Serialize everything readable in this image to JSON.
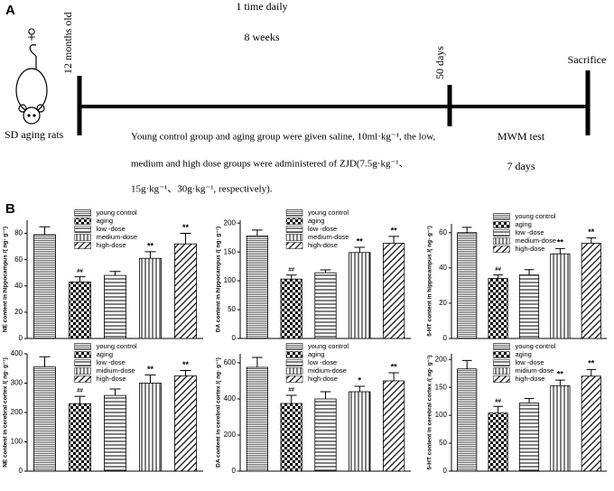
{
  "panel_a": {
    "label": "A",
    "symbol": "♀",
    "start": "12 months old",
    "frequency": "1 time daily",
    "duration": "8 weeks",
    "mid": "50 days",
    "end": "Sacrifice",
    "subject": "SD aging rats",
    "note": [
      "Young control group and aging group were given saline, 10ml·kg⁻¹, the low,",
      "medium and high dose groups were administered of ZJD(7.5g·kg⁻¹、",
      "15g·kg⁻¹、30g·kg⁻¹, respectively)."
    ],
    "test": "MWM test",
    "test_duration": "7 days"
  },
  "panel_b_label": "B",
  "chart_data": [
    {
      "type": "bar",
      "ylabel": "NE content in hippocampus /( ng· g⁻¹)",
      "categories": [
        "young control",
        "aging",
        "low -dose",
        "medium-dose",
        "high-dose"
      ],
      "values": [
        79,
        43,
        48,
        61,
        72
      ],
      "errors": [
        6,
        4,
        3,
        5,
        8
      ],
      "annotations": [
        null,
        "##",
        null,
        "**",
        "**"
      ],
      "ylim": [
        0,
        90
      ],
      "yticks": [
        0,
        20,
        40,
        60,
        80
      ]
    },
    {
      "type": "bar",
      "ylabel": "DA content in hippocampus /( ng· g⁻¹)",
      "categories": [
        "young control",
        "aging",
        "low -dose",
        "medium-dose",
        "high-dose"
      ],
      "values": [
        178,
        103,
        114,
        149,
        165
      ],
      "errors": [
        10,
        7,
        5,
        9,
        12
      ],
      "annotations": [
        null,
        "##",
        null,
        "**",
        "**"
      ],
      "ylim": [
        0,
        205
      ],
      "yticks": [
        0,
        50,
        100,
        150,
        200
      ]
    },
    {
      "type": "bar",
      "ylabel": "5-HT content in hippocampus /( ng· g⁻¹)",
      "categories": [
        "young control",
        "aging",
        "low -dose",
        "medium-dose",
        "high-dose"
      ],
      "values": [
        60,
        34,
        36,
        48,
        54
      ],
      "errors": [
        3,
        2,
        3,
        3,
        3
      ],
      "annotations": [
        null,
        "##",
        null,
        "**",
        "**"
      ],
      "ylim": [
        0,
        65
      ],
      "yticks": [
        0,
        20,
        40,
        60
      ]
    },
    {
      "type": "bar",
      "ylabel": "NE content in cerebral cortex /( ng· g⁻¹)",
      "categories": [
        "young control",
        "aging",
        "low -dose",
        "midium-dose",
        "high-dose"
      ],
      "values": [
        355,
        230,
        258,
        300,
        325
      ],
      "errors": [
        35,
        25,
        22,
        28,
        18
      ],
      "annotations": [
        null,
        "##",
        null,
        "**",
        "**"
      ],
      "ylim": [
        0,
        400
      ],
      "yticks": [
        0,
        100,
        200,
        300,
        400
      ]
    },
    {
      "type": "bar",
      "ylabel": "DA content in cerebral cortex /( ng· g⁻¹)",
      "categories": [
        "young control",
        "aging",
        "low -dose",
        "midium-dose",
        "high-dose"
      ],
      "values": [
        575,
        375,
        400,
        440,
        500
      ],
      "errors": [
        55,
        45,
        40,
        30,
        45
      ],
      "annotations": [
        null,
        "##",
        null,
        "*",
        "**"
      ],
      "ylim": [
        0,
        650
      ],
      "yticks": [
        0,
        200,
        400,
        600
      ]
    },
    {
      "type": "bar",
      "ylabel": "5-HT content in cerebral cortex /( ng· g⁻¹)",
      "categories": [
        "young control",
        "aging",
        "low -dose",
        "midium-dose",
        "high-dose"
      ],
      "values": [
        183,
        104,
        122,
        153,
        170
      ],
      "errors": [
        15,
        12,
        8,
        10,
        12
      ],
      "annotations": [
        null,
        "##",
        null,
        "**",
        "**"
      ],
      "ylim": [
        0,
        210
      ],
      "yticks": [
        0,
        50,
        100,
        150,
        200
      ]
    }
  ]
}
